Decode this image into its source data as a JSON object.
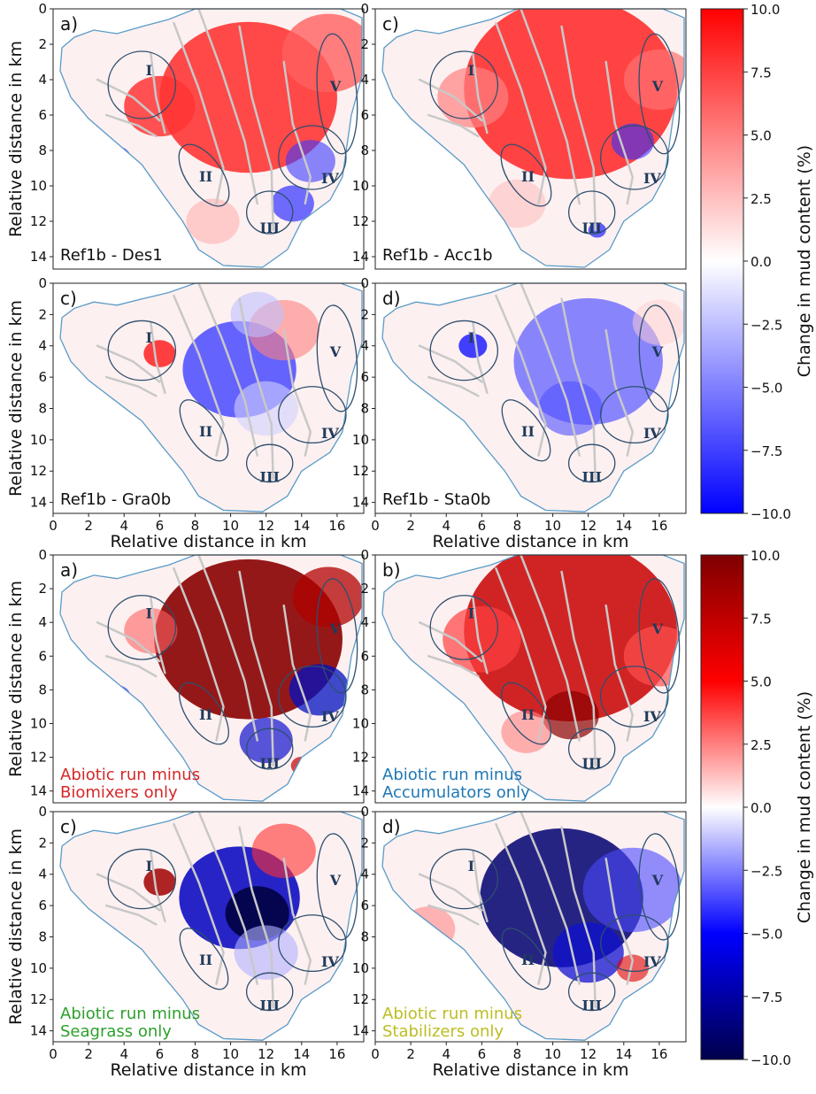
{
  "figure": {
    "colorbar_label": "Change in mud content (%)",
    "colorbar_ticks": [
      "10.0",
      "7.5",
      "5.0",
      "2.5",
      "0.0",
      "−2.5",
      "−5.0",
      "−7.5",
      "−10.0"
    ],
    "xlabel": "Relative distance in km",
    "ylabel": "Relative distance in km",
    "x_ticks": [
      "0",
      "2",
      "4",
      "6",
      "8",
      "10",
      "12",
      "14",
      "16"
    ],
    "y_ticks": [
      "0",
      "2",
      "4",
      "6",
      "8",
      "10",
      "12",
      "14"
    ],
    "zone_labels": [
      "I",
      "II",
      "III",
      "IV",
      "V"
    ]
  },
  "chart_data": [
    {
      "type": "heatmap",
      "panel": "a)",
      "caption": "Ref1b - Des1",
      "xlim": [
        0,
        17.5
      ],
      "ylim": [
        14.7,
        0
      ],
      "clim": [
        -10,
        10
      ],
      "colormap": "bwr"
    },
    {
      "type": "heatmap",
      "panel": "c)",
      "caption": "Ref1b - Acc1b",
      "xlim": [
        0,
        17.5
      ],
      "ylim": [
        14.7,
        0
      ],
      "clim": [
        -10,
        10
      ],
      "colormap": "bwr"
    },
    {
      "type": "heatmap",
      "panel": "c)",
      "caption": "Ref1b - Gra0b",
      "xlim": [
        0,
        17.5
      ],
      "ylim": [
        14.7,
        0
      ],
      "clim": [
        -10,
        10
      ],
      "colormap": "bwr"
    },
    {
      "type": "heatmap",
      "panel": "d)",
      "caption": "Ref1b - Sta0b",
      "xlim": [
        0,
        17.5
      ],
      "ylim": [
        14.7,
        0
      ],
      "clim": [
        -10,
        10
      ],
      "colormap": "bwr"
    },
    {
      "type": "heatmap",
      "panel": "a)",
      "caption": [
        "Abiotic run minus",
        "Biomixers only"
      ],
      "caption_color": "#d62728",
      "xlim": [
        0,
        17.5
      ],
      "ylim": [
        14.7,
        0
      ],
      "clim": [
        -10,
        10
      ],
      "colormap": "seismic"
    },
    {
      "type": "heatmap",
      "panel": "b)",
      "caption": [
        "Abiotic run minus",
        "Accumulators only"
      ],
      "caption_color": "#1f77b4",
      "xlim": [
        0,
        17.5
      ],
      "ylim": [
        14.7,
        0
      ],
      "clim": [
        -10,
        10
      ],
      "colormap": "seismic"
    },
    {
      "type": "heatmap",
      "panel": "c)",
      "caption": [
        "Abiotic run minus",
        "Seagrass only"
      ],
      "caption_color": "#2ca02c",
      "xlim": [
        0,
        17.5
      ],
      "ylim": [
        14.7,
        0
      ],
      "clim": [
        -10,
        10
      ],
      "colormap": "seismic"
    },
    {
      "type": "heatmap",
      "panel": "d)",
      "caption": [
        "Abiotic run minus",
        "Stabilizers only"
      ],
      "caption_color": "#bcbd22",
      "xlim": [
        0,
        17.5
      ],
      "ylim": [
        14.7,
        0
      ],
      "clim": [
        -10,
        10
      ],
      "colormap": "seismic"
    }
  ]
}
